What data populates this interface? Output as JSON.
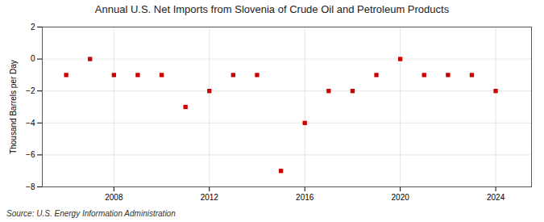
{
  "chart_data": {
    "type": "scatter",
    "title": "Annual U.S. Net Imports from Slovenia of Crude Oil and Petroleum Products",
    "ylabel": "Thousand Barrels per Day",
    "source": "Source: U.S. Energy Information Administration",
    "x": [
      2006,
      2007,
      2008,
      2009,
      2010,
      2011,
      2012,
      2013,
      2014,
      2015,
      2016,
      2017,
      2018,
      2019,
      2020,
      2021,
      2022,
      2023,
      2024
    ],
    "values": [
      -1.0,
      0.0,
      -1.0,
      -1.0,
      -1.0,
      -3.0,
      -2.0,
      -1.0,
      -1.0,
      -7.0,
      -4.0,
      -2.0,
      -2.0,
      -1.0,
      0.0,
      -1.0,
      -1.0,
      -1.0,
      -2.0
    ],
    "color": "#cc0000",
    "marker": "square",
    "xlim": [
      2005.0,
      2025.5
    ],
    "xticks": [
      2008,
      2012,
      2016,
      2020,
      2024
    ],
    "ylim": [
      -8,
      2
    ],
    "yticks": [
      -8,
      -6,
      -4,
      -2,
      0,
      2
    ],
    "grid": true
  }
}
